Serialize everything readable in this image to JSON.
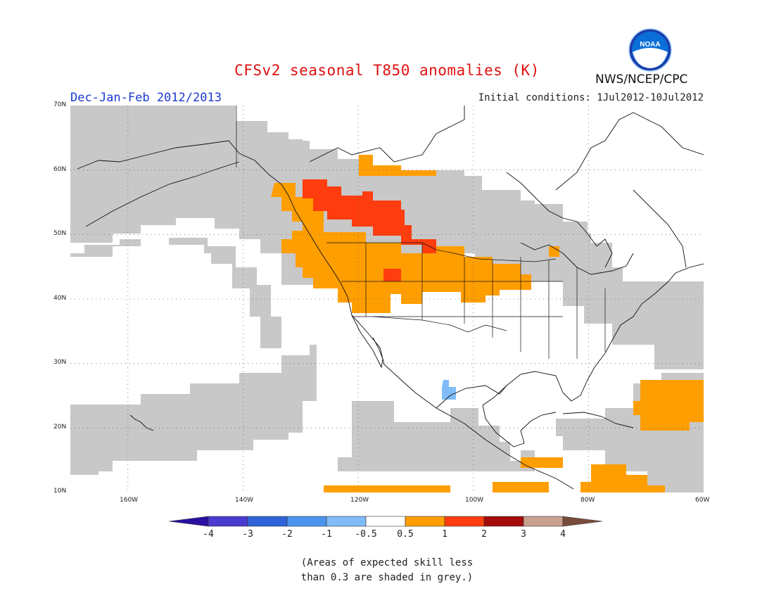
{
  "header": {
    "title": "CFSv2 seasonal T850 anomalies (K)",
    "season": "Dec-Jan-Feb 2012/2013",
    "initial_conditions": "Initial conditions: 1Jul2012-10Jul2012",
    "agency": "NWS/NCEP/CPC",
    "logo_text": "NOAA"
  },
  "map": {
    "lon_range": [
      -170,
      -60
    ],
    "lat_range": [
      10,
      70
    ],
    "lat_labels": [
      "70N",
      "60N",
      "50N",
      "40N",
      "30N",
      "20N",
      "10N"
    ],
    "lon_labels": [
      "160W",
      "140W",
      "120W",
      "100W",
      "80W",
      "60W"
    ]
  },
  "legend": {
    "labels": [
      "-4",
      "-3",
      "-2",
      "-1",
      "-0.5",
      "0.5",
      "1",
      "2",
      "3",
      "4"
    ],
    "colors": [
      "#2a0fa0",
      "#4a3ad0",
      "#2e62d8",
      "#4a94ee",
      "#80bcf8",
      "#ffffff",
      "#ff9e00",
      "#ff3d0e",
      "#a50a0a",
      "#c8a08e",
      "#7a4c3c"
    ],
    "skill_grey": "#c8c8c8"
  },
  "footnote": {
    "line1": "(Areas of expected skill less",
    "line2": "than 0.3 are shaded in grey.)"
  }
}
